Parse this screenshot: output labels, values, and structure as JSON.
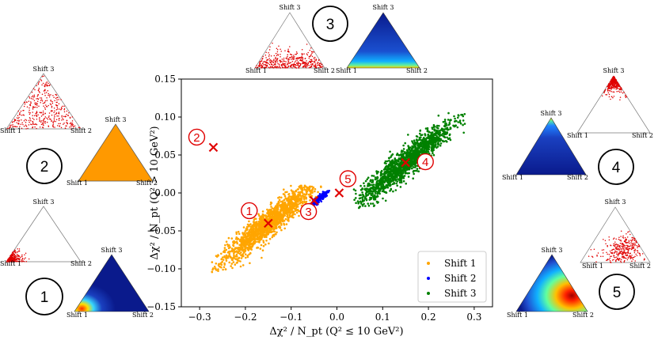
{
  "chart_data": {
    "type": "scatter",
    "xlabel": "Δχ² / N_pt (Q² ≤ 10 GeV²)",
    "ylabel": "Δχ² / N_pt (Q² > 10 GeV²)",
    "xlim": [
      -0.34,
      0.34
    ],
    "ylim": [
      -0.15,
      0.15
    ],
    "xticks": [
      "−0.3",
      "−0.2",
      "−0.1",
      "0.0",
      "0.1",
      "0.2",
      "0.3"
    ],
    "yticks": [
      "0.15",
      "0.10",
      "0.05",
      "0.00",
      "−0.05",
      "−0.10",
      "−0.15"
    ],
    "xtick_values": [
      -0.3,
      -0.2,
      -0.1,
      0.0,
      0.1,
      0.2,
      0.3
    ],
    "ytick_values": [
      0.15,
      0.1,
      0.05,
      0.0,
      -0.05,
      -0.1,
      -0.15
    ],
    "legend_position": "bottom-right",
    "series": [
      {
        "name": "Shift 1",
        "color": "#ffa500",
        "cluster": {
          "center": [
            -0.15,
            -0.04
          ],
          "x_range": [
            -0.275,
            -0.025
          ],
          "y_range": [
            -0.105,
            0.01
          ],
          "orientation": "positive correlation"
        }
      },
      {
        "name": "Shift 2",
        "color": "#0000ff",
        "cluster": {
          "center": [
            -0.04,
            -0.008
          ],
          "x_range": [
            -0.065,
            -0.015
          ],
          "y_range": [
            -0.025,
            0.005
          ],
          "orientation": "positive correlation"
        }
      },
      {
        "name": "Shift 3",
        "color": "#008000",
        "cluster": {
          "center": [
            0.15,
            0.04
          ],
          "x_range": [
            0.035,
            0.28
          ],
          "y_range": [
            -0.02,
            0.108
          ],
          "orientation": "positive correlation"
        }
      }
    ],
    "markers": [
      {
        "label": "1",
        "x": -0.15,
        "y": -0.04
      },
      {
        "label": "2",
        "x": -0.27,
        "y": 0.06
      },
      {
        "label": "3",
        "x": -0.05,
        "y": -0.01
      },
      {
        "label": "4",
        "x": 0.15,
        "y": 0.04
      },
      {
        "label": "5",
        "x": 0.005,
        "y": 0.0
      }
    ],
    "marker_color": "#e00000"
  },
  "vertex_labels": {
    "top": "Shift 3",
    "left": "Shift 1",
    "right": "Shift 2"
  },
  "insets": [
    {
      "id": "1",
      "label": "1"
    },
    {
      "id": "2",
      "label": "2"
    },
    {
      "id": "3",
      "label": "3"
    },
    {
      "id": "4",
      "label": "4"
    },
    {
      "id": "5",
      "label": "5"
    }
  ],
  "colors": {
    "scatter_red": "#e00000",
    "heat_blue": "#0a1a8c",
    "orange_fill": "#ff9900"
  }
}
